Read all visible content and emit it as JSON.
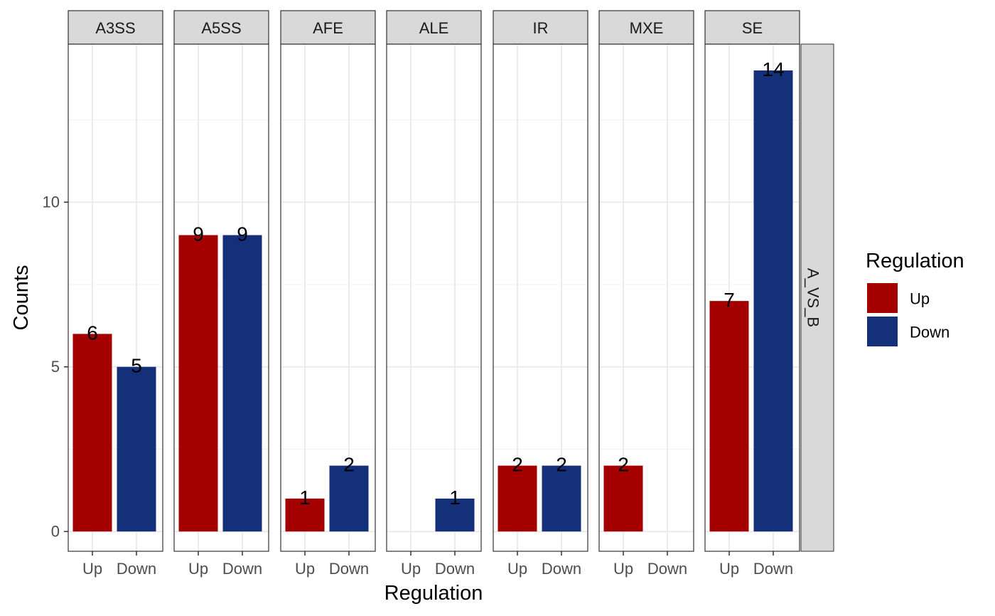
{
  "chart_data": {
    "type": "bar",
    "facet_row_label": "A_VS_B",
    "panels": [
      {
        "name": "A3SS",
        "values": {
          "Up": 6,
          "Down": 5
        }
      },
      {
        "name": "A5SS",
        "values": {
          "Up": 9,
          "Down": 9
        }
      },
      {
        "name": "AFE",
        "values": {
          "Up": 1,
          "Down": 2
        }
      },
      {
        "name": "ALE",
        "values": {
          "Down": 1
        }
      },
      {
        "name": "IR",
        "values": {
          "Up": 2,
          "Down": 2
        }
      },
      {
        "name": "MXE",
        "values": {
          "Up": 2
        }
      },
      {
        "name": "SE",
        "values": {
          "Up": 7,
          "Down": 14
        }
      }
    ],
    "categories": [
      "Up",
      "Down"
    ],
    "xlabel": "Regulation",
    "ylabel": "Counts",
    "ylim": [
      -0.6,
      14.8
    ],
    "yticks": [
      0,
      5,
      10
    ],
    "grid": true,
    "legend": {
      "title": "Regulation",
      "placement": "right",
      "entries": [
        {
          "label": "Up",
          "color": "#A50000"
        },
        {
          "label": "Down",
          "color": "#15307A"
        }
      ]
    },
    "colors": {
      "Up": "#A50000",
      "Down": "#15307A"
    }
  }
}
